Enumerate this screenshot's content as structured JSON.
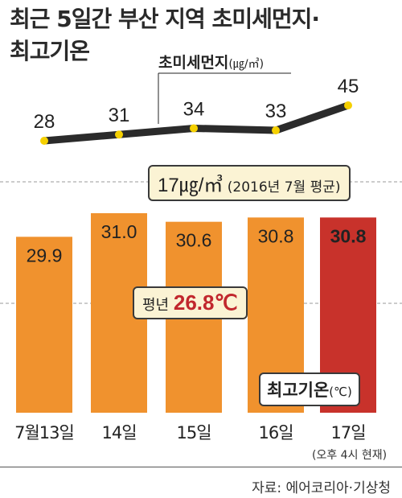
{
  "title": {
    "line1": "최근 5일간 부산 지역 초미세먼지·",
    "line2": "최고기온"
  },
  "chart_data": [
    {
      "type": "line",
      "series_label": "초미세먼지",
      "unit": "(㎍/㎥)",
      "categories": [
        "7월13일",
        "14일",
        "15일",
        "16일",
        "17일"
      ],
      "values": [
        28,
        31,
        34,
        33,
        45
      ],
      "reference": {
        "value": 17,
        "value_text": "17㎍/㎥",
        "label": "(2016년 7월 평균)"
      },
      "colors": {
        "line": "#2b2b2b",
        "marker": "#f5d000"
      }
    },
    {
      "type": "bar",
      "series_label": "최고기온",
      "unit": "(℃)",
      "categories": [
        "7월13일",
        "14일",
        "15일",
        "16일",
        "17일"
      ],
      "values": [
        29.9,
        31.0,
        30.6,
        30.8,
        30.8
      ],
      "value_labels": [
        "29.9",
        "31.0",
        "30.6",
        "30.8",
        "30.8"
      ],
      "reference": {
        "value": 26.8,
        "prefix": "평년",
        "value_text": "26.8℃"
      },
      "colors": {
        "bar": "#f0922e",
        "highlight": "#c8322b"
      },
      "highlight_index": 4
    }
  ],
  "note": "(오후 4시 현재)",
  "source": "자료: 에어코리아·기상청"
}
